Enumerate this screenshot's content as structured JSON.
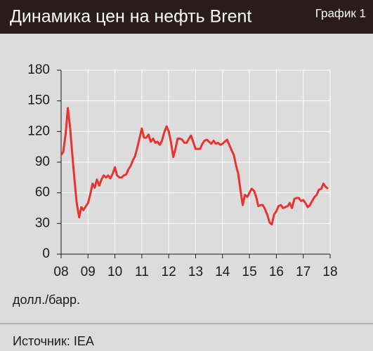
{
  "chart_data": {
    "type": "line",
    "title": "Динамика цен на нефть Brent",
    "figure_label": "График 1",
    "ylabel": "долл./барр.",
    "source": "Источник: IEA",
    "x": [
      2008,
      2008.08,
      2008.17,
      2008.25,
      2008.33,
      2008.42,
      2008.5,
      2008.58,
      2008.67,
      2008.75,
      2008.83,
      2008.92,
      2009,
      2009.08,
      2009.17,
      2009.25,
      2009.33,
      2009.42,
      2009.5,
      2009.58,
      2009.67,
      2009.75,
      2009.83,
      2009.92,
      2010,
      2010.08,
      2010.17,
      2010.25,
      2010.33,
      2010.42,
      2010.5,
      2010.58,
      2010.67,
      2010.75,
      2010.83,
      2010.92,
      2011,
      2011.08,
      2011.17,
      2011.25,
      2011.33,
      2011.42,
      2011.5,
      2011.58,
      2011.67,
      2011.75,
      2011.83,
      2011.92,
      2012,
      2012.08,
      2012.17,
      2012.25,
      2012.33,
      2012.42,
      2012.5,
      2012.58,
      2012.67,
      2012.75,
      2012.83,
      2012.92,
      2013,
      2013.08,
      2013.17,
      2013.25,
      2013.33,
      2013.42,
      2013.5,
      2013.58,
      2013.67,
      2013.75,
      2013.83,
      2013.92,
      2014,
      2014.08,
      2014.17,
      2014.25,
      2014.33,
      2014.42,
      2014.5,
      2014.58,
      2014.67,
      2014.75,
      2014.83,
      2014.92,
      2015,
      2015.08,
      2015.17,
      2015.25,
      2015.33,
      2015.42,
      2015.5,
      2015.58,
      2015.67,
      2015.75,
      2015.83,
      2015.92,
      2016,
      2016.08,
      2016.17,
      2016.25,
      2016.33,
      2016.42,
      2016.5,
      2016.58,
      2016.67,
      2016.75,
      2016.83,
      2016.92,
      2017,
      2017.08,
      2017.17,
      2017.25,
      2017.33,
      2017.42,
      2017.5,
      2017.58,
      2017.67,
      2017.75,
      2017.83,
      2017.92
    ],
    "series": [
      {
        "name": "Brent",
        "color": "#e8332f",
        "values": [
          97,
          100,
          118,
          143,
          125,
          96,
          72,
          50,
          36,
          46,
          43,
          47,
          50,
          58,
          69,
          65,
          73,
          67,
          73,
          77,
          75,
          77,
          74,
          79,
          85,
          77,
          75,
          75,
          77,
          78,
          83,
          86,
          92,
          96,
          104,
          114,
          123,
          114,
          114,
          117,
          110,
          113,
          109,
          110,
          107,
          111,
          119,
          125,
          120,
          110,
          95,
          103,
          113,
          113,
          112,
          109,
          109,
          113,
          116,
          109,
          103,
          103,
          103,
          108,
          111,
          112,
          110,
          108,
          111,
          108,
          109,
          107,
          108,
          110,
          112,
          107,
          102,
          97,
          87,
          79,
          62,
          48,
          58,
          56,
          60,
          64,
          62,
          56,
          47,
          48,
          48,
          44,
          38,
          31,
          29,
          39,
          42,
          47,
          48,
          45,
          46,
          47,
          50,
          45,
          54,
          55,
          55,
          52,
          53,
          50,
          46,
          48,
          52,
          56,
          58,
          63,
          64,
          69,
          66,
          64
        ]
      }
    ],
    "xlim": [
      2008,
      2018
    ],
    "xticks": [
      {
        "value": 2008,
        "label": "08"
      },
      {
        "value": 2009,
        "label": "09"
      },
      {
        "value": 2010,
        "label": "10"
      },
      {
        "value": 2011,
        "label": "11"
      },
      {
        "value": 2012,
        "label": "12"
      },
      {
        "value": 2013,
        "label": "13"
      },
      {
        "value": 2014,
        "label": "14"
      },
      {
        "value": 2015,
        "label": "15"
      },
      {
        "value": 2016,
        "label": "16"
      },
      {
        "value": 2017,
        "label": "17"
      },
      {
        "value": 2018,
        "label": "18"
      }
    ],
    "ylim": [
      0,
      180
    ],
    "yticks": [
      0,
      30,
      60,
      90,
      120,
      150,
      180
    ],
    "grid": true
  }
}
